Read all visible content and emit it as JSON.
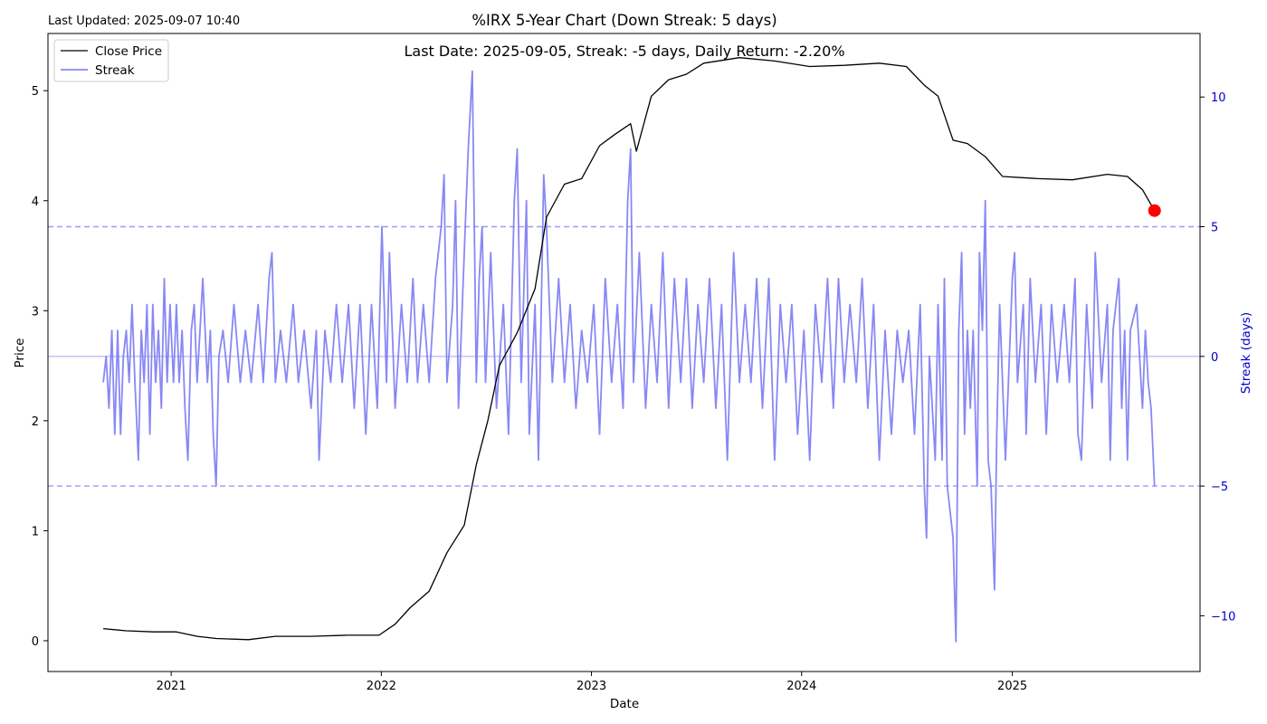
{
  "chart_data": {
    "type": "line",
    "title": "%IRX 5-Year Chart (Down Streak: 5 days)",
    "updated": "Last Updated: 2025-09-07 10:40",
    "annotation": "Last Date: 2025-09-05, Streak: -5 days, Daily Return: -2.20%",
    "xlabel": "Date",
    "ylabel": "Price",
    "y2label": "Streak (days)",
    "xlim": [
      "2020-06-01",
      "2025-11-23"
    ],
    "ylim": [
      -0.28,
      5.52
    ],
    "y2lim": [
      -12.15,
      12.45
    ],
    "x_ticks": [
      "2021",
      "2022",
      "2023",
      "2024",
      "2025"
    ],
    "y_ticks": [
      "0",
      "1",
      "2",
      "3",
      "4",
      "5"
    ],
    "y2_ticks": [
      "−10",
      "−5",
      "0",
      "5",
      "10"
    ],
    "grid": false,
    "legend_position": "top-left",
    "colors": {
      "price": "#000000",
      "streak": "#7b7bf4",
      "marker": "#ff0000",
      "axis2": "#0000cc"
    },
    "series": [
      {
        "name": "Close Price",
        "axis": "left",
        "points": [
          [
            "2020-09-05",
            0.11
          ],
          [
            "2020-10-15",
            0.09
          ],
          [
            "2020-12-01",
            0.08
          ],
          [
            "2021-01-10",
            0.08
          ],
          [
            "2021-02-15",
            0.04
          ],
          [
            "2021-03-20",
            0.02
          ],
          [
            "2021-05-15",
            0.01
          ],
          [
            "2021-07-01",
            0.04
          ],
          [
            "2021-09-01",
            0.04
          ],
          [
            "2021-11-01",
            0.05
          ],
          [
            "2021-12-28",
            0.05
          ],
          [
            "2022-01-25",
            0.15
          ],
          [
            "2022-02-20",
            0.3
          ],
          [
            "2022-03-25",
            0.45
          ],
          [
            "2022-04-25",
            0.8
          ],
          [
            "2022-05-25",
            1.05
          ],
          [
            "2022-06-15",
            1.6
          ],
          [
            "2022-07-05",
            2.0
          ],
          [
            "2022-07-25",
            2.5
          ],
          [
            "2022-08-25",
            2.8
          ],
          [
            "2022-09-25",
            3.2
          ],
          [
            "2022-10-15",
            3.85
          ],
          [
            "2022-11-15",
            4.15
          ],
          [
            "2022-12-15",
            4.2
          ],
          [
            "2023-01-15",
            4.5
          ],
          [
            "2023-02-10",
            4.6
          ],
          [
            "2023-03-10",
            4.7
          ],
          [
            "2023-03-20",
            4.45
          ],
          [
            "2023-04-15",
            4.95
          ],
          [
            "2023-05-15",
            5.1
          ],
          [
            "2023-06-15",
            5.15
          ],
          [
            "2023-07-15",
            5.25
          ],
          [
            "2023-09-15",
            5.3
          ],
          [
            "2023-11-15",
            5.27
          ],
          [
            "2024-01-15",
            5.22
          ],
          [
            "2024-03-15",
            5.23
          ],
          [
            "2024-05-15",
            5.25
          ],
          [
            "2024-07-01",
            5.22
          ],
          [
            "2024-08-01",
            5.05
          ],
          [
            "2024-08-25",
            4.95
          ],
          [
            "2024-09-20",
            4.55
          ],
          [
            "2024-10-15",
            4.52
          ],
          [
            "2024-11-15",
            4.4
          ],
          [
            "2024-12-15",
            4.22
          ],
          [
            "2025-02-15",
            4.2
          ],
          [
            "2025-04-15",
            4.19
          ],
          [
            "2025-06-15",
            4.24
          ],
          [
            "2025-07-20",
            4.22
          ],
          [
            "2025-08-15",
            4.1
          ],
          [
            "2025-09-05",
            3.91
          ]
        ]
      },
      {
        "name": "Streak",
        "axis": "right",
        "points": [
          [
            "2020-09-05",
            -1
          ],
          [
            "2020-09-10",
            0
          ],
          [
            "2020-09-15",
            -2
          ],
          [
            "2020-09-20",
            1
          ],
          [
            "2020-09-25",
            -3
          ],
          [
            "2020-09-30",
            1
          ],
          [
            "2020-10-05",
            -3
          ],
          [
            "2020-10-10",
            0
          ],
          [
            "2020-10-15",
            1
          ],
          [
            "2020-10-20",
            -1
          ],
          [
            "2020-10-25",
            2
          ],
          [
            "2020-10-30",
            -1
          ],
          [
            "2020-11-05",
            -4
          ],
          [
            "2020-11-10",
            1
          ],
          [
            "2020-11-15",
            -1
          ],
          [
            "2020-11-20",
            2
          ],
          [
            "2020-11-25",
            -3
          ],
          [
            "2020-11-30",
            2
          ],
          [
            "2020-12-05",
            -1
          ],
          [
            "2020-12-10",
            1
          ],
          [
            "2020-12-15",
            -2
          ],
          [
            "2020-12-20",
            3
          ],
          [
            "2020-12-25",
            -1
          ],
          [
            "2020-12-30",
            2
          ],
          [
            "2021-01-05",
            -1
          ],
          [
            "2021-01-10",
            2
          ],
          [
            "2021-01-15",
            -1
          ],
          [
            "2021-01-20",
            1
          ],
          [
            "2021-01-25",
            -2
          ],
          [
            "2021-01-30",
            -4
          ],
          [
            "2021-02-05",
            1
          ],
          [
            "2021-02-10",
            2
          ],
          [
            "2021-02-15",
            -1
          ],
          [
            "2021-02-20",
            1
          ],
          [
            "2021-02-25",
            3
          ],
          [
            "2021-03-05",
            -1
          ],
          [
            "2021-03-10",
            1
          ],
          [
            "2021-03-15",
            -3
          ],
          [
            "2021-03-20",
            -5
          ],
          [
            "2021-03-25",
            0
          ],
          [
            "2021-04-01",
            1
          ],
          [
            "2021-04-10",
            -1
          ],
          [
            "2021-04-20",
            2
          ],
          [
            "2021-05-01",
            -1
          ],
          [
            "2021-05-10",
            1
          ],
          [
            "2021-05-20",
            -1
          ],
          [
            "2021-06-01",
            2
          ],
          [
            "2021-06-10",
            -1
          ],
          [
            "2021-06-20",
            3
          ],
          [
            "2021-06-25",
            4
          ],
          [
            "2021-07-01",
            -1
          ],
          [
            "2021-07-10",
            1
          ],
          [
            "2021-07-20",
            -1
          ],
          [
            "2021-08-01",
            2
          ],
          [
            "2021-08-10",
            -1
          ],
          [
            "2021-08-20",
            1
          ],
          [
            "2021-09-01",
            -2
          ],
          [
            "2021-09-10",
            1
          ],
          [
            "2021-09-15",
            -4
          ],
          [
            "2021-09-25",
            1
          ],
          [
            "2021-10-05",
            -1
          ],
          [
            "2021-10-15",
            2
          ],
          [
            "2021-10-25",
            -1
          ],
          [
            "2021-11-05",
            2
          ],
          [
            "2021-11-15",
            -2
          ],
          [
            "2021-11-25",
            2
          ],
          [
            "2021-12-05",
            -3
          ],
          [
            "2021-12-15",
            2
          ],
          [
            "2021-12-25",
            -2
          ],
          [
            "2022-01-02",
            5
          ],
          [
            "2022-01-10",
            -1
          ],
          [
            "2022-01-15",
            4
          ],
          [
            "2022-01-25",
            -2
          ],
          [
            "2022-02-05",
            2
          ],
          [
            "2022-02-15",
            -1
          ],
          [
            "2022-02-25",
            3
          ],
          [
            "2022-03-05",
            -1
          ],
          [
            "2022-03-15",
            2
          ],
          [
            "2022-03-25",
            -1
          ],
          [
            "2022-04-05",
            3
          ],
          [
            "2022-04-15",
            5
          ],
          [
            "2022-04-20",
            7
          ],
          [
            "2022-04-25",
            -1
          ],
          [
            "2022-05-05",
            2
          ],
          [
            "2022-05-10",
            6
          ],
          [
            "2022-05-15",
            -2
          ],
          [
            "2022-05-25",
            4
          ],
          [
            "2022-06-01",
            8
          ],
          [
            "2022-06-08",
            11
          ],
          [
            "2022-06-15",
            -1
          ],
          [
            "2022-06-20",
            3
          ],
          [
            "2022-06-25",
            5
          ],
          [
            "2022-07-01",
            -1
          ],
          [
            "2022-07-10",
            4
          ],
          [
            "2022-07-20",
            -2
          ],
          [
            "2022-08-01",
            2
          ],
          [
            "2022-08-10",
            -3
          ],
          [
            "2022-08-20",
            6
          ],
          [
            "2022-08-25",
            8
          ],
          [
            "2022-09-01",
            -1
          ],
          [
            "2022-09-10",
            6
          ],
          [
            "2022-09-15",
            -3
          ],
          [
            "2022-09-25",
            2
          ],
          [
            "2022-10-01",
            -4
          ],
          [
            "2022-10-10",
            7
          ],
          [
            "2022-10-15",
            5
          ],
          [
            "2022-10-25",
            -1
          ],
          [
            "2022-11-05",
            3
          ],
          [
            "2022-11-15",
            -1
          ],
          [
            "2022-11-25",
            2
          ],
          [
            "2022-12-05",
            -2
          ],
          [
            "2022-12-15",
            1
          ],
          [
            "2022-12-25",
            -1
          ],
          [
            "2023-01-05",
            2
          ],
          [
            "2023-01-15",
            -3
          ],
          [
            "2023-01-25",
            3
          ],
          [
            "2023-02-05",
            -1
          ],
          [
            "2023-02-15",
            2
          ],
          [
            "2023-02-25",
            -2
          ],
          [
            "2023-03-05",
            6
          ],
          [
            "2023-03-10",
            8
          ],
          [
            "2023-03-15",
            -1
          ],
          [
            "2023-03-25",
            4
          ],
          [
            "2023-04-05",
            -2
          ],
          [
            "2023-04-15",
            2
          ],
          [
            "2023-04-25",
            -1
          ],
          [
            "2023-05-05",
            4
          ],
          [
            "2023-05-15",
            -2
          ],
          [
            "2023-05-25",
            3
          ],
          [
            "2023-06-05",
            -1
          ],
          [
            "2023-06-15",
            3
          ],
          [
            "2023-06-25",
            -2
          ],
          [
            "2023-07-05",
            2
          ],
          [
            "2023-07-15",
            -1
          ],
          [
            "2023-07-25",
            3
          ],
          [
            "2023-08-05",
            -2
          ],
          [
            "2023-08-15",
            2
          ],
          [
            "2023-08-25",
            -4
          ],
          [
            "2023-09-05",
            4
          ],
          [
            "2023-09-15",
            -1
          ],
          [
            "2023-09-25",
            2
          ],
          [
            "2023-10-05",
            -1
          ],
          [
            "2023-10-15",
            3
          ],
          [
            "2023-10-25",
            -2
          ],
          [
            "2023-11-05",
            3
          ],
          [
            "2023-11-15",
            -4
          ],
          [
            "2023-11-25",
            2
          ],
          [
            "2023-12-05",
            -1
          ],
          [
            "2023-12-15",
            2
          ],
          [
            "2023-12-25",
            -3
          ],
          [
            "2024-01-05",
            1
          ],
          [
            "2024-01-15",
            -4
          ],
          [
            "2024-01-25",
            2
          ],
          [
            "2024-02-05",
            -1
          ],
          [
            "2024-02-15",
            3
          ],
          [
            "2024-02-25",
            -2
          ],
          [
            "2024-03-05",
            3
          ],
          [
            "2024-03-15",
            -1
          ],
          [
            "2024-03-25",
            2
          ],
          [
            "2024-04-05",
            -1
          ],
          [
            "2024-04-15",
            3
          ],
          [
            "2024-04-25",
            -2
          ],
          [
            "2024-05-05",
            2
          ],
          [
            "2024-05-15",
            -4
          ],
          [
            "2024-05-25",
            1
          ],
          [
            "2024-06-05",
            -3
          ],
          [
            "2024-06-15",
            1
          ],
          [
            "2024-06-25",
            -1
          ],
          [
            "2024-07-05",
            1
          ],
          [
            "2024-07-15",
            -3
          ],
          [
            "2024-07-25",
            2
          ],
          [
            "2024-08-01",
            -5
          ],
          [
            "2024-08-05",
            -7
          ],
          [
            "2024-08-10",
            0
          ],
          [
            "2024-08-20",
            -4
          ],
          [
            "2024-08-25",
            2
          ],
          [
            "2024-09-01",
            -4
          ],
          [
            "2024-09-05",
            3
          ],
          [
            "2024-09-10",
            -5
          ],
          [
            "2024-09-20",
            -7
          ],
          [
            "2024-09-25",
            -11
          ],
          [
            "2024-09-30",
            1
          ],
          [
            "2024-10-05",
            4
          ],
          [
            "2024-10-10",
            -3
          ],
          [
            "2024-10-15",
            1
          ],
          [
            "2024-10-20",
            -2
          ],
          [
            "2024-10-25",
            1
          ],
          [
            "2024-11-01",
            -5
          ],
          [
            "2024-11-05",
            4
          ],
          [
            "2024-11-10",
            1
          ],
          [
            "2024-11-15",
            6
          ],
          [
            "2024-11-20",
            -4
          ],
          [
            "2024-11-25",
            -5
          ],
          [
            "2024-12-01",
            -9
          ],
          [
            "2024-12-05",
            -3
          ],
          [
            "2024-12-10",
            2
          ],
          [
            "2024-12-20",
            -4
          ],
          [
            "2025-01-01",
            3
          ],
          [
            "2025-01-05",
            4
          ],
          [
            "2025-01-10",
            -1
          ],
          [
            "2025-01-20",
            2
          ],
          [
            "2025-01-25",
            -3
          ],
          [
            "2025-02-01",
            3
          ],
          [
            "2025-02-10",
            -1
          ],
          [
            "2025-02-20",
            2
          ],
          [
            "2025-03-01",
            -3
          ],
          [
            "2025-03-10",
            2
          ],
          [
            "2025-03-20",
            -1
          ],
          [
            "2025-04-01",
            2
          ],
          [
            "2025-04-10",
            -1
          ],
          [
            "2025-04-20",
            3
          ],
          [
            "2025-04-25",
            -3
          ],
          [
            "2025-05-01",
            -4
          ],
          [
            "2025-05-10",
            2
          ],
          [
            "2025-05-20",
            -2
          ],
          [
            "2025-05-25",
            4
          ],
          [
            "2025-06-05",
            -1
          ],
          [
            "2025-06-15",
            2
          ],
          [
            "2025-06-20",
            -4
          ],
          [
            "2025-06-25",
            1
          ],
          [
            "2025-07-05",
            3
          ],
          [
            "2025-07-10",
            -2
          ],
          [
            "2025-07-15",
            1
          ],
          [
            "2025-07-20",
            -4
          ],
          [
            "2025-07-25",
            1
          ],
          [
            "2025-08-05",
            2
          ],
          [
            "2025-08-15",
            -2
          ],
          [
            "2025-08-20",
            1
          ],
          [
            "2025-08-25",
            -1
          ],
          [
            "2025-08-30",
            -2
          ],
          [
            "2025-09-05",
            -5
          ]
        ]
      }
    ],
    "reference_lines": {
      "axis": "right",
      "dashed": [
        5,
        -5
      ],
      "solid": [
        0
      ]
    },
    "last_point": {
      "x": "2025-09-05",
      "y": 3.91
    }
  }
}
